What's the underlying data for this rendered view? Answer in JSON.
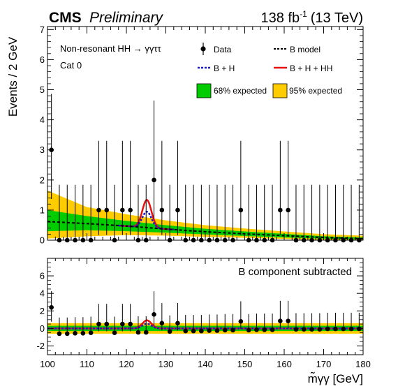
{
  "header": {
    "experiment": "CMS",
    "status": "Preliminary",
    "lumi_value": "138 fb",
    "lumi_exp": "-1",
    "energy": "(13 TeV)"
  },
  "annotations": {
    "process": "Non-resonant HH → γγττ",
    "category": "Cat 0",
    "subtracted": "B component subtracted"
  },
  "legend": {
    "data": "Data",
    "bmodel": "B model",
    "bh": "B + H",
    "bhhh": "B + H + HH",
    "exp68": "68% expected",
    "exp95": "95% expected"
  },
  "colors": {
    "data": "#000000",
    "bmodel": "#000000",
    "bh": "#1a1acc",
    "bhhh": "#e81010",
    "band68": "#00cc00",
    "band95": "#ffcc00"
  },
  "chart_data": [
    {
      "type": "scatter",
      "panel": "main",
      "xlabel": "m̃γγ [GeV]",
      "ylabel": "Events / 2 GeV",
      "xlim": [
        100,
        180
      ],
      "ylim": [
        0,
        7.1
      ],
      "xticks": [
        100,
        110,
        120,
        130,
        140,
        150,
        160,
        170,
        180
      ],
      "yticks": [
        0,
        1,
        2,
        3,
        4,
        5,
        6,
        7
      ],
      "data_x": [
        101,
        103,
        105,
        107,
        109,
        111,
        113,
        115,
        117,
        119,
        121,
        123,
        125,
        127,
        129,
        131,
        133,
        135,
        137,
        139,
        141,
        143,
        145,
        147,
        149,
        151,
        153,
        155,
        157,
        159,
        161,
        163,
        165,
        167,
        169,
        171,
        173,
        175,
        177,
        179
      ],
      "data_y": [
        3,
        0,
        0,
        0,
        0,
        0,
        1,
        1,
        0,
        1,
        1,
        0,
        0,
        2,
        1,
        0,
        1,
        0,
        0,
        0,
        0,
        0,
        0,
        0,
        1,
        0,
        0,
        0,
        0,
        1,
        1,
        0,
        0,
        0,
        0,
        0,
        0,
        0,
        0,
        0
      ],
      "err_up": [
        1.86,
        1.84,
        1.84,
        1.84,
        1.84,
        1.84,
        2.3,
        2.3,
        1.84,
        2.3,
        2.3,
        1.84,
        1.84,
        2.64,
        2.3,
        1.84,
        2.3,
        1.84,
        1.84,
        1.84,
        1.84,
        1.84,
        1.84,
        1.84,
        2.3,
        1.84,
        1.84,
        1.84,
        1.84,
        2.3,
        2.3,
        1.84,
        1.84,
        1.84,
        1.84,
        1.84,
        1.84,
        1.84,
        1.84,
        1.84
      ],
      "err_down": [
        1.63,
        0,
        0,
        0,
        0,
        0,
        0.83,
        0.83,
        0,
        0.83,
        0.83,
        0,
        0,
        1.29,
        0.83,
        0,
        0.83,
        0,
        0,
        0,
        0,
        0,
        0,
        0,
        0.83,
        0,
        0,
        0,
        0,
        0.83,
        0.83,
        0,
        0,
        0,
        0,
        0,
        0,
        0,
        0,
        0
      ],
      "bmodel_x": [
        100,
        110,
        120,
        130,
        140,
        150,
        160,
        170,
        180
      ],
      "bmodel_y": [
        0.62,
        0.55,
        0.47,
        0.37,
        0.28,
        0.21,
        0.15,
        0.09,
        0.05
      ],
      "band68": {
        "x": [
          100,
          110,
          120,
          130,
          140,
          150,
          160,
          170,
          180
        ],
        "low": [
          0.3,
          0.33,
          0.3,
          0.25,
          0.19,
          0.14,
          0.09,
          0.05,
          0.02
        ],
        "high": [
          1.0,
          0.8,
          0.64,
          0.5,
          0.38,
          0.29,
          0.21,
          0.13,
          0.09
        ]
      },
      "band95": {
        "x": [
          100,
          110,
          120,
          130,
          140,
          150,
          160,
          170,
          180
        ],
        "low": [
          0.05,
          0.13,
          0.17,
          0.15,
          0.11,
          0.08,
          0.04,
          0.01,
          0.0
        ],
        "high": [
          1.65,
          1.1,
          0.86,
          0.66,
          0.5,
          0.39,
          0.29,
          0.2,
          0.15
        ]
      },
      "h_peak": 0.53,
      "hh_peak": 0.92,
      "peak_mean": 125.2,
      "peak_sigma": 1.15
    },
    {
      "type": "scatter",
      "panel": "ratio",
      "xlabel": "m̃γγ [GeV]",
      "xlim": [
        100,
        180
      ],
      "ylim": [
        -3,
        8
      ],
      "xticks": [
        100,
        110,
        120,
        130,
        140,
        150,
        160,
        170,
        180
      ],
      "yticks": [
        -2,
        0,
        2,
        4,
        6
      ],
      "data_x": [
        101,
        103,
        105,
        107,
        109,
        111,
        113,
        115,
        117,
        119,
        121,
        123,
        125,
        127,
        129,
        131,
        133,
        135,
        137,
        139,
        141,
        143,
        145,
        147,
        149,
        151,
        153,
        155,
        157,
        159,
        161,
        163,
        165,
        167,
        169,
        171,
        173,
        175,
        177,
        179
      ],
      "data_y": [
        2.4,
        -0.6,
        -0.6,
        -0.55,
        -0.55,
        -0.5,
        0.5,
        0.5,
        -0.5,
        0.5,
        0.5,
        -0.45,
        -0.45,
        1.6,
        0.6,
        -0.35,
        0.6,
        -0.3,
        -0.3,
        -0.3,
        -0.25,
        -0.25,
        -0.2,
        -0.2,
        0.8,
        -0.2,
        -0.15,
        -0.15,
        -0.15,
        0.85,
        0.85,
        -0.1,
        -0.1,
        -0.1,
        -0.1,
        -0.05,
        -0.05,
        -0.05,
        -0.05,
        -0.05
      ],
      "err_up": [
        1.86,
        1.84,
        1.84,
        1.84,
        1.84,
        1.84,
        2.3,
        2.3,
        1.84,
        2.3,
        2.3,
        1.84,
        1.84,
        2.64,
        2.3,
        1.84,
        2.3,
        1.84,
        1.84,
        1.84,
        1.84,
        1.84,
        1.84,
        1.84,
        2.3,
        1.84,
        1.84,
        1.84,
        1.84,
        2.3,
        2.3,
        1.84,
        1.84,
        1.84,
        1.84,
        1.84,
        1.84,
        1.84,
        1.84,
        1.84
      ],
      "err_down": [
        1.63,
        0,
        0,
        0,
        0,
        0,
        0.83,
        0.83,
        0,
        0.83,
        0.83,
        0,
        0,
        1.29,
        0.83,
        0,
        0.83,
        0,
        0,
        0,
        0,
        0,
        0,
        0,
        0.83,
        0,
        0,
        0,
        0,
        0.83,
        0.83,
        0,
        0,
        0,
        0,
        0,
        0,
        0,
        0,
        0
      ],
      "band68_half": 0.3,
      "band95_half": 0.6
    }
  ]
}
